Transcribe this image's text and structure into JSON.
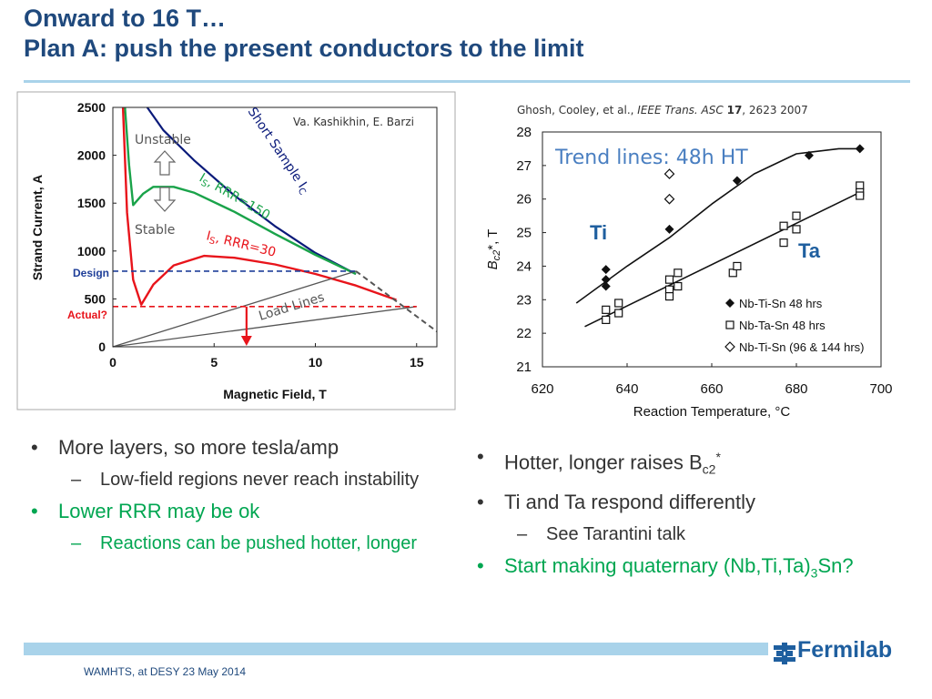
{
  "title": {
    "line1": "Onward to 16 T…",
    "line2": "Plan A: push the present conductors to the limit"
  },
  "colors": {
    "title": "#1f497d",
    "accent_rule": "#a9d3ea",
    "bullet_green": "#00a651",
    "curve_navy": "#0a1a7a",
    "curve_green": "#1aa34a",
    "curve_red": "#e8141b",
    "line_gray": "#555555",
    "design_blue": "#1f3f99"
  },
  "left_figure": {
    "credit": "Va. Kashikhin, E. Barzi",
    "labels": {
      "unstable": "Unstable",
      "stable": "Stable",
      "short_sample": "Short Sample I",
      "short_sample_sub": "C",
      "rrr150": "I",
      "rrr150_sub": "S",
      "rrr150_tail": ", RRR=150",
      "rrr30": "I",
      "rrr30_sub": "S",
      "rrr30_tail": ", RRR=30",
      "load_lines": "Load Lines",
      "design": "Design",
      "actual": "Actual?"
    }
  },
  "right_figure": {
    "citation_pre": "Ghosh, Cooley, et al., ",
    "citation_journal": "IEEE Trans. ASC",
    "citation_vol": "17",
    "citation_post": ", 2623 2007",
    "trend_label": "Trend lines: 48h HT",
    "ti_label": "Ti",
    "ta_label": "Ta",
    "ylabel_main": "B",
    "ylabel_sub": "c2",
    "ylabel_tail": "*,  T"
  },
  "chart_data": [
    {
      "type": "line",
      "xlabel": "Magnetic Field, T",
      "ylabel": "Strand Current, A",
      "xlim": [
        0,
        16
      ],
      "ylim": [
        0,
        2500
      ],
      "xticks": [
        0,
        5,
        10,
        15
      ],
      "yticks": [
        0,
        500,
        1000,
        1500,
        2000,
        2500
      ],
      "series": [
        {
          "name": "Short Sample IC",
          "x": [
            1.7,
            2.5,
            4,
            6,
            8,
            10,
            12
          ],
          "y": [
            2500,
            2260,
            1950,
            1580,
            1260,
            980,
            760
          ]
        },
        {
          "name": "IS, RRR=150",
          "x": [
            0.6,
            0.8,
            1.0,
            1.5,
            2.0,
            3.0,
            4.0,
            6.0,
            8.0,
            10.0,
            12.0
          ],
          "y": [
            2500,
            1900,
            1480,
            1600,
            1670,
            1670,
            1610,
            1410,
            1180,
            960,
            760
          ]
        },
        {
          "name": "IS, RRR=30",
          "x": [
            0.5,
            0.7,
            1.0,
            1.4,
            2.0,
            3.0,
            4.5,
            6.0,
            8.0,
            10.0,
            12.0,
            14.0
          ],
          "y": [
            2500,
            1400,
            700,
            440,
            650,
            850,
            950,
            930,
            860,
            760,
            640,
            490
          ]
        },
        {
          "name": "Load Line 1",
          "x": [
            0,
            12
          ],
          "y": [
            0,
            790
          ]
        },
        {
          "name": "Load Line 2",
          "x": [
            0,
            15
          ],
          "y": [
            0,
            420
          ]
        }
      ],
      "design_level": 790,
      "actual_level": 420,
      "arrow_x": 6.6
    },
    {
      "type": "scatter",
      "xlabel": "Reaction Temperature, °C",
      "ylabel": "Bc2*, T",
      "xlim": [
        620,
        700
      ],
      "ylim": [
        21,
        28
      ],
      "xticks": [
        620,
        640,
        660,
        680,
        700
      ],
      "yticks": [
        21,
        22,
        23,
        24,
        25,
        26,
        27,
        28
      ],
      "series": [
        {
          "name": "Nb-Ti-Sn 48 hrs",
          "marker": "filled-diamond",
          "x": [
            635,
            635,
            635,
            650,
            666,
            683,
            695
          ],
          "y": [
            23.9,
            23.6,
            23.4,
            25.1,
            26.55,
            27.3,
            27.5
          ]
        },
        {
          "name": "Nb-Ta-Sn 48 hrs",
          "marker": "open-square",
          "x": [
            635,
            635,
            638,
            638,
            650,
            650,
            650,
            652,
            652,
            665,
            666,
            677,
            677,
            680,
            680,
            695,
            695,
            695
          ],
          "y": [
            22.7,
            22.4,
            22.9,
            22.6,
            23.6,
            23.3,
            23.1,
            23.8,
            23.4,
            23.8,
            24.0,
            25.2,
            24.7,
            25.5,
            25.1,
            26.4,
            26.2,
            26.1
          ]
        },
        {
          "name": "Nb-Ti-Sn (96 & 144 hrs)",
          "marker": "open-diamond",
          "x": [
            650,
            650
          ],
          "y": [
            26.75,
            26.0
          ]
        }
      ],
      "trend_lines": [
        {
          "x": [
            628,
            640,
            650,
            660,
            670,
            680,
            690,
            695
          ],
          "y": [
            22.9,
            24.0,
            24.85,
            25.85,
            26.75,
            27.35,
            27.5,
            27.5
          ]
        },
        {
          "x": [
            630,
            695
          ],
          "y": [
            22.2,
            26.2
          ]
        }
      ]
    }
  ],
  "bullets_left": [
    {
      "level": 1,
      "color": "dark",
      "text": "More layers, so more tesla/amp"
    },
    {
      "level": 2,
      "color": "dark",
      "text": "Low-field regions never reach instability"
    },
    {
      "level": 1,
      "color": "green",
      "text": "Lower RRR may be ok"
    },
    {
      "level": 2,
      "color": "green",
      "text": "Reactions can be pushed hotter, longer"
    }
  ],
  "bullets_right": {
    "b1_text": "Hotter, longer raises B",
    "b1_sub": "c2",
    "b1_sup": "*",
    "b2_text": "Ti and Ta respond differently",
    "b3_text": "See Tarantini talk",
    "b4_pre": "Start making quaternary (Nb,Ti,Ta)",
    "b4_sub": "3",
    "b4_post": "Sn?"
  },
  "footer": {
    "text": "WAMHTS, at DESY 23 May 2014",
    "logo_text": "Fermilab",
    "logo_icon": "fermilab-logo-icon"
  }
}
